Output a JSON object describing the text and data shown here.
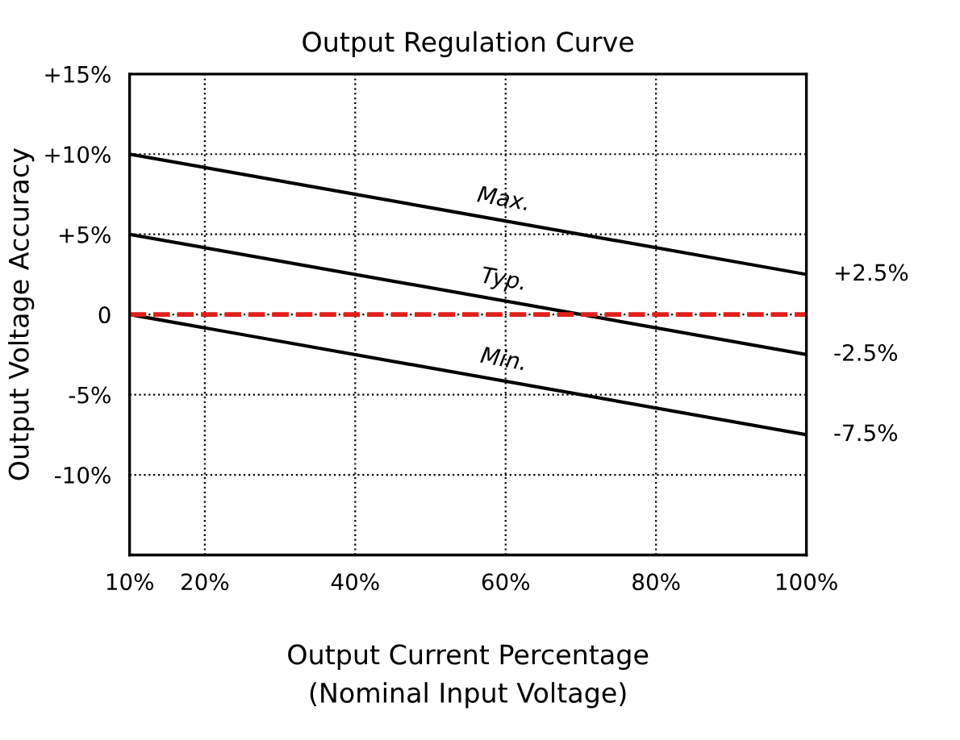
{
  "chart_data": {
    "type": "line",
    "title": "Output Regulation Curve",
    "xlabel": "Output Current Percentage\n(Nominal Input Voltage)",
    "ylabel": "Output Voltage Accuracy",
    "x": [
      10,
      100
    ],
    "series": [
      {
        "name": "Max.",
        "color": "#000000",
        "values": [
          10,
          2.5
        ]
      },
      {
        "name": "Typ.",
        "color": "#000000",
        "values": [
          5,
          -2.5
        ]
      },
      {
        "name": "Min.",
        "color": "#000000",
        "values": [
          0,
          -7.5
        ]
      }
    ],
    "xlim": [
      10,
      100
    ],
    "xticks": [
      {
        "value": 10,
        "label": "10%"
      },
      {
        "value": 20,
        "label": "20%"
      },
      {
        "value": 40,
        "label": "40%"
      },
      {
        "value": 60,
        "label": "60%"
      },
      {
        "value": 80,
        "label": "80%"
      },
      {
        "value": 100,
        "label": "100%"
      }
    ],
    "ylim": [
      -15,
      15
    ],
    "yticks": [
      {
        "value": -15,
        "label": null
      },
      {
        "value": -10,
        "label": "-10%"
      },
      {
        "value": -5,
        "label": "-5%"
      },
      {
        "value": 0,
        "label": "0"
      },
      {
        "value": 5,
        "label": "+5%"
      },
      {
        "value": 10,
        "label": "+10%"
      },
      {
        "value": 15,
        "label": "+15%"
      }
    ],
    "ref_lines": [
      {
        "axis": "y",
        "value": 0,
        "label": null,
        "color": "#e0201b",
        "line_style": "dashed"
      }
    ],
    "annotations": [
      "+2.5%",
      "-2.5%",
      "-7.5%"
    ],
    "grid": true,
    "line_style": "solid",
    "marker": "none",
    "legend": false
  }
}
